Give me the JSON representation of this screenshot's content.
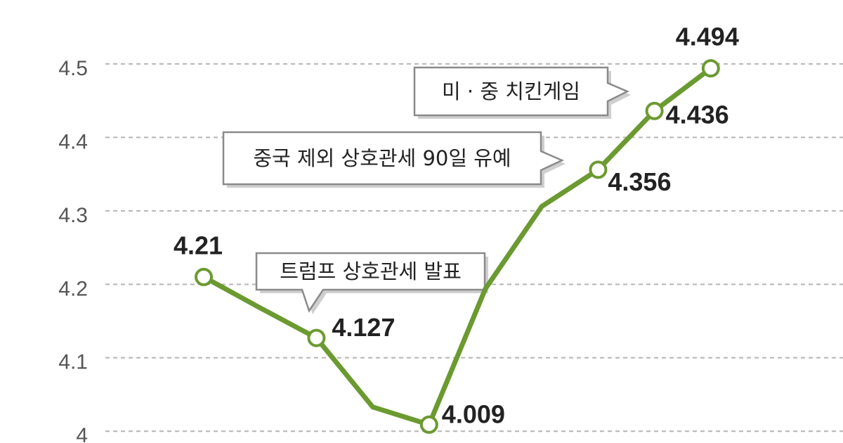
{
  "chart_data": {
    "type": "line",
    "categories": [
      null,
      null,
      null,
      null,
      null,
      null,
      null,
      null,
      null,
      null
    ],
    "series": [
      {
        "color": "#6b9a30",
        "values": [
          4.21,
          4.168,
          4.127,
          4.033,
          4.009,
          4.194,
          4.306,
          4.356,
          4.436,
          4.494
        ],
        "value_labels": [
          "4.21",
          null,
          "4.127",
          null,
          "4.009",
          null,
          null,
          "4.356",
          "4.436",
          "4.494"
        ]
      }
    ],
    "ylim": [
      3.984,
      4.587
    ],
    "yticks": [
      4,
      4.1,
      4.2,
      4.3,
      4.4,
      4.5
    ],
    "grid": true,
    "annotations": [
      "트럼프 상호관세 발표",
      "중국 제외 상호관세 90일 유예",
      "미 · 중 치킨게임"
    ]
  }
}
